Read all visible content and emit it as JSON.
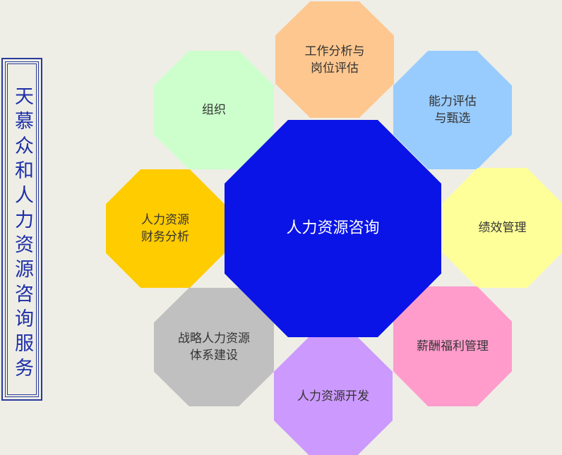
{
  "title": "天慕众和人力资源咨询服务",
  "center": {
    "label": "人力资源咨询",
    "color": "#0a14e6"
  },
  "nodes": [
    {
      "id": "job-analysis",
      "label": "工作分析与\n岗位评估",
      "color": "#fec78f"
    },
    {
      "id": "competency",
      "label": "能力评估\n与甄选",
      "color": "#99ccfe"
    },
    {
      "id": "performance",
      "label": "绩效管理",
      "color": "#ffff99"
    },
    {
      "id": "compensation",
      "label": "薪酬福利管理",
      "color": "#ff9ccc"
    },
    {
      "id": "hr-development",
      "label": "人力资源开发",
      "color": "#cc99ff"
    },
    {
      "id": "hr-system",
      "label": "战略人力资源\n体系建设",
      "color": "#c0c0c0"
    },
    {
      "id": "hr-finance",
      "label": "人力资源\n财务分析",
      "color": "#ffcc00"
    },
    {
      "id": "organization",
      "label": "组织",
      "color": "#ccffcc"
    }
  ]
}
